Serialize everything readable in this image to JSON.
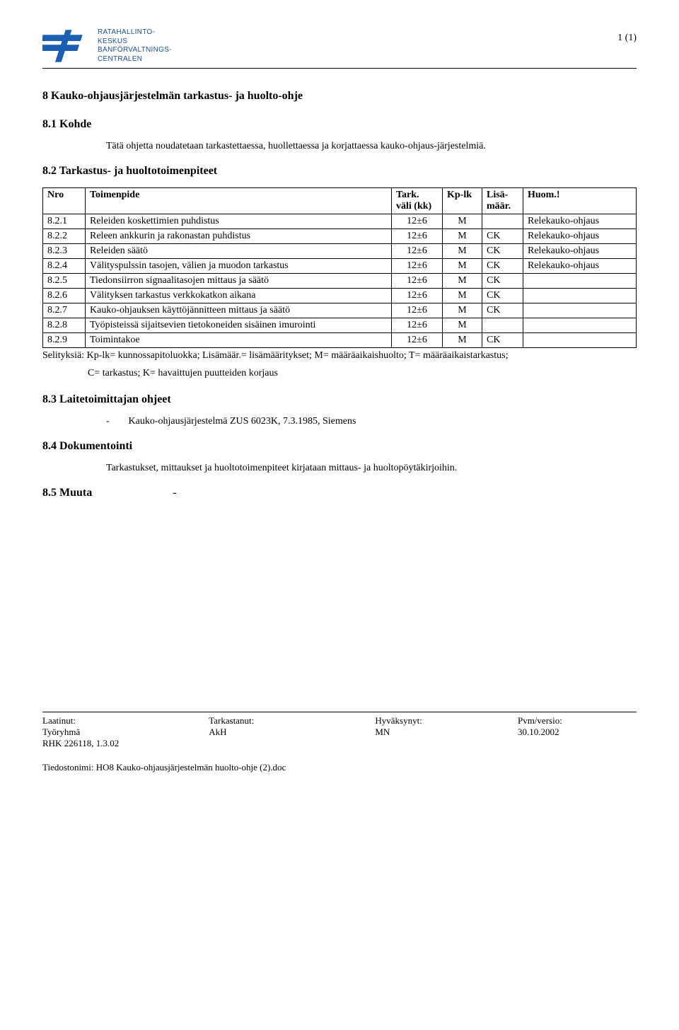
{
  "header": {
    "org_line1": "RATAHALLINTO-",
    "org_line2": "KESKUS",
    "org_line3": "BANFÖRVALTNINGS-",
    "org_line4": "CENTRALEN",
    "page_num": "1 (1)",
    "logo_color": "#1a5fb4"
  },
  "title": "8 Kauko-ohjausjärjestelmän tarkastus- ja huolto-ohje",
  "s1": {
    "heading": "8.1 Kohde",
    "body": "Tätä ohjetta noudatetaan tarkastettaessa, huollettaessa ja korjattaessa kauko-ohjaus-järjestelmiä."
  },
  "s2": {
    "heading": "8.2 Tarkastus- ja huoltotoimenpiteet",
    "columns": {
      "nro": "Nro",
      "toimenpide": "Toimenpide",
      "tark1": "Tark.",
      "tark2": "väli (kk)",
      "kplk": "Kp-lk",
      "lisa1": "Lisä-",
      "lisa2": "määr.",
      "huom": "Huom.!"
    },
    "rows": [
      {
        "nro": "8.2.1",
        "toim": "Releiden koskettimien puhdistus",
        "tark": "12±6",
        "kp": "M",
        "lisa": "",
        "huom": "Relekauko-ohjaus"
      },
      {
        "nro": "8.2.2",
        "toim": "Releen ankkurin ja rakonastan puhdistus",
        "tark": "12±6",
        "kp": "M",
        "lisa": "CK",
        "huom": "Relekauko-ohjaus"
      },
      {
        "nro": "8.2.3",
        "toim": "Releiden säätö",
        "tark": "12±6",
        "kp": "M",
        "lisa": "CK",
        "huom": "Relekauko-ohjaus"
      },
      {
        "nro": "8.2.4",
        "toim": "Välityspulssin tasojen, välien ja muodon tarkastus",
        "tark": "12±6",
        "kp": "M",
        "lisa": "CK",
        "huom": "Relekauko-ohjaus"
      },
      {
        "nro": "8.2.5",
        "toim": "Tiedonsiirron signaalitasojen mittaus ja säätö",
        "tark": "12±6",
        "kp": "M",
        "lisa": "CK",
        "huom": ""
      },
      {
        "nro": "8.2.6",
        "toim": "Välityksen tarkastus verkkokatkon aikana",
        "tark": "12±6",
        "kp": "M",
        "lisa": "CK",
        "huom": ""
      },
      {
        "nro": "8.2.7",
        "toim": "Kauko-ohjauksen käyttöjännitteen mittaus ja säätö",
        "tark": "12±6",
        "kp": "M",
        "lisa": "CK",
        "huom": ""
      },
      {
        "nro": "8.2.8",
        "toim": "Työpisteissä sijaitsevien tietokoneiden sisäinen imurointi",
        "tark": "12±6",
        "kp": "M",
        "lisa": "",
        "huom": ""
      },
      {
        "nro": "8.2.9",
        "toim": "Toimintakoe",
        "tark": "12±6",
        "kp": "M",
        "lisa": "CK",
        "huom": ""
      }
    ],
    "caption_l1": "Selityksiä: Kp-lk= kunnossapitoluokka; Lisämäär.= lisämääritykset; M= määräaikaishuolto; T= määräaikaistarkastus;",
    "caption_l2": "C= tarkastus; K= havaittujen puutteiden korjaus"
  },
  "s3": {
    "heading": "8.3 Laitetoimittajan ohjeet",
    "bullet": "Kauko-ohjausjärjestelmä ZUS 6023K, 7.3.1985, Siemens"
  },
  "s4": {
    "heading": "8.4 Dokumentointi",
    "body": "Tarkastukset, mittaukset ja huoltotoimenpiteet kirjataan mittaus- ja huoltopöytäkirjoihin."
  },
  "s5": {
    "heading": "8.5 Muuta",
    "dash": "-"
  },
  "footer": {
    "r1c1": "Laatinut:",
    "r1c2": "Tarkastanut:",
    "r1c3": "Hyväksynyt:",
    "r1c4": "Pvm/versio:",
    "r2c1": "Työryhmä",
    "r2c2": "AkH",
    "r2c3": "MN",
    "r2c4": "30.10.2002",
    "r3c1": "RHK 226118, 1.3.02",
    "file": "Tiedostonimi: HO8 Kauko-ohjausjärjestelmän huolto-ohje (2).doc"
  }
}
